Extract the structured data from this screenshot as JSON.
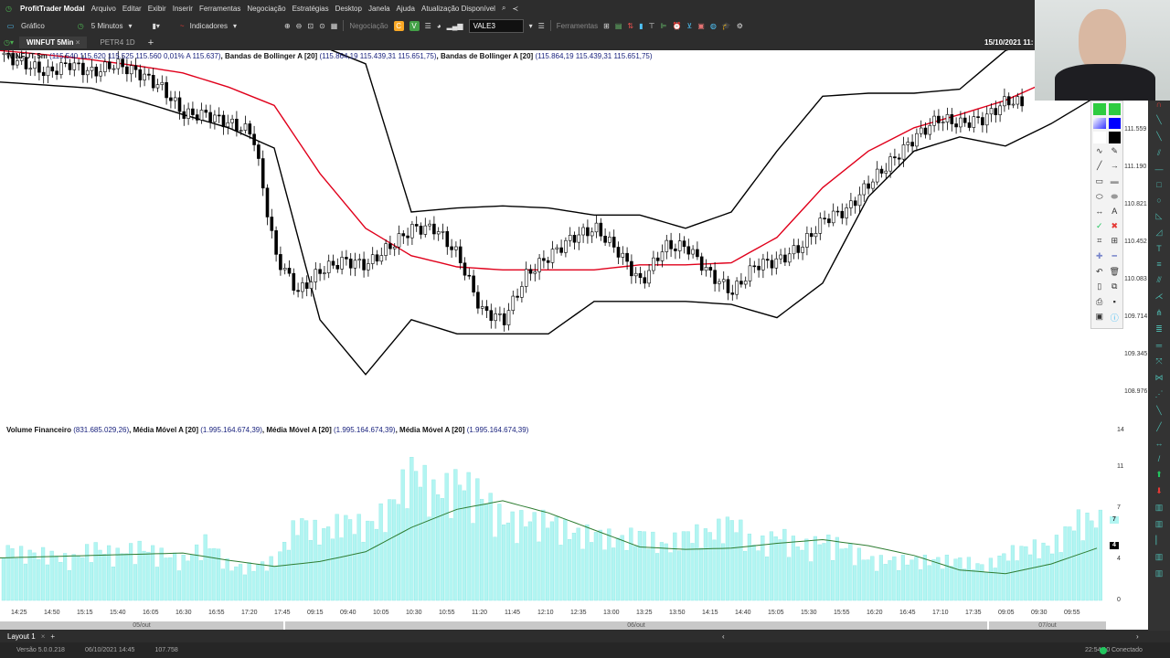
{
  "app": {
    "title": "ProfitTrader Modal",
    "menu": [
      "Arquivo",
      "Editar",
      "Exibir",
      "Inserir",
      "Ferramentas",
      "Negociação",
      "Estratégias",
      "Desktop",
      "Janela",
      "Ajuda",
      "Atualização Disponível"
    ]
  },
  "toolbar": {
    "chart": "Gráfico",
    "interval": "5 Minutos",
    "indicators": "Indicadores",
    "trading": "Negociação",
    "symbol": "VALE3",
    "tools": "Ferramentas"
  },
  "tabs": [
    {
      "label": "WINFUT 5Min",
      "active": true
    },
    {
      "label": "PETR4 1D",
      "active": false
    }
  ],
  "datetime": "15/10/2021 11:",
  "legend_price": {
    "name": "WINFUT 5m",
    "ohlc": "(115.540  115.620  115.525  115.560  0,01%  A 115.637)",
    "bb1": "Bandas de Bollinger A [20]",
    "bb1_vals": "(115.864,19  115.439,31 115.651,75)",
    "bb2": "Bandas de Bollinger A [20]",
    "bb2_vals": "(115.864,19  115.439,31 115.651,75)"
  },
  "legend_volume": {
    "name": "Volume Financeiro",
    "val": "(831.685.029,26)",
    "ma1": "Média Móvel A [20]",
    "ma1_val": "(1.995.164.674,39)",
    "ma2": "Média Móvel A [20]",
    "ma2_val": "(1.995.164.674,39)",
    "ma3": "Média Móvel A [20]",
    "ma3_val": "(1.995.164.674,39)"
  },
  "price_axis": [
    "111.559",
    "111.190",
    "110.821",
    "110.452",
    "110.083",
    "109.714",
    "109.345",
    "108.976"
  ],
  "volume_axis": [
    "14",
    "11",
    "7",
    "4",
    "0"
  ],
  "volume_markers": {
    "last": "7",
    "ma": "4"
  },
  "time_axis": [
    "14:25",
    "14:50",
    "15:15",
    "15:40",
    "16:05",
    "16:30",
    "16:55",
    "17:20",
    "17:45",
    "09:15",
    "09:40",
    "10:05",
    "10:30",
    "10:55",
    "11:20",
    "11:45",
    "12:10",
    "12:35",
    "13:00",
    "13:25",
    "13:50",
    "14:15",
    "14:40",
    "15:05",
    "15:30",
    "15:55",
    "16:20",
    "16:45",
    "17:10",
    "17:35",
    "09:05",
    "09:30",
    "09:55"
  ],
  "dates": [
    "05/out",
    "06/out",
    "07/out"
  ],
  "layout": {
    "tab": "Layout 1"
  },
  "status": {
    "version": "Versão 5.0.0.218",
    "date": "06/10/2021 14:45",
    "value": "107.758",
    "clock": "22:54:10",
    "connection": "Conectado"
  },
  "colors": {
    "middle_band": "#e0001b",
    "bands": "#000000",
    "volume": "#b2f5f2",
    "volume_ma": "#2e7d32",
    "connected": "#22c55e"
  },
  "chart_data": [
    {
      "type": "candlestick",
      "ylim": [
        108.9,
        112.3
      ],
      "close": [
        112.29,
        112.2,
        112.11,
        112.2,
        112.11,
        112.2,
        112.11,
        111.97,
        111.7,
        111.7,
        111.61,
        111.52,
        110.31,
        109.95,
        110.17,
        110.26,
        110.22,
        110.4,
        110.58,
        110.58,
        110.31,
        109.77,
        109.68,
        110.13,
        110.31,
        110.49,
        110.58,
        110.35,
        110.04,
        110.4,
        110.4,
        110.13,
        109.95,
        110.22,
        110.26,
        110.4,
        110.67,
        110.76,
        111.03,
        111.25,
        111.48,
        111.66,
        111.61,
        111.66,
        111.84,
        111.79,
        111.88,
        111.93,
        112.29
      ],
      "middle_band": [
        112.33,
        112.29,
        112.24,
        112.18,
        112.11,
        111.97,
        111.79,
        111.12,
        110.58,
        110.31,
        110.2,
        110.17,
        110.17,
        110.17,
        110.22,
        110.22,
        110.24,
        110.49,
        110.98,
        111.34,
        111.57,
        111.7,
        111.84,
        112.04,
        112.15
      ],
      "upper_band": [
        112.65,
        112.63,
        112.6,
        112.58,
        112.56,
        112.53,
        112.47,
        112.38,
        112.2,
        110.74,
        110.78,
        110.8,
        110.78,
        110.71,
        110.71,
        110.58,
        110.74,
        111.34,
        111.88,
        111.91,
        111.91,
        111.95,
        112.33,
        112.47,
        112.56
      ],
      "lower_band": [
        112.02,
        111.99,
        111.96,
        111.84,
        111.7,
        111.57,
        111.37,
        109.68,
        109.14,
        109.68,
        109.54,
        109.54,
        109.54,
        109.86,
        109.86,
        109.86,
        109.83,
        109.7,
        110.04,
        110.89,
        111.34,
        111.48,
        111.39,
        111.61,
        111.88
      ]
    },
    {
      "type": "bar",
      "ylim": [
        0,
        14
      ],
      "volume": [
        4,
        3.5,
        3.5,
        3,
        4,
        3.5,
        4,
        3.5,
        3,
        4.5,
        2.5,
        2.5,
        3,
        6,
        5,
        6,
        5.5,
        7,
        10,
        8,
        9,
        8,
        6,
        6,
        6,
        5,
        5,
        4.5,
        5,
        4,
        5,
        5,
        6,
        4,
        5,
        4,
        4.5,
        4,
        3,
        3,
        3,
        3,
        3,
        2.5,
        3.5,
        4,
        4,
        6,
        6
      ],
      "moving_average": [
        3.5,
        3.6,
        3.7,
        3.8,
        3.9,
        3.3,
        2.8,
        3.2,
        4,
        6,
        7.5,
        8.2,
        7.2,
        5.8,
        4.4,
        4.2,
        4.3,
        4.7,
        5,
        4.5,
        3.7,
        2.5,
        2.2,
        3,
        4.3
      ]
    }
  ]
}
